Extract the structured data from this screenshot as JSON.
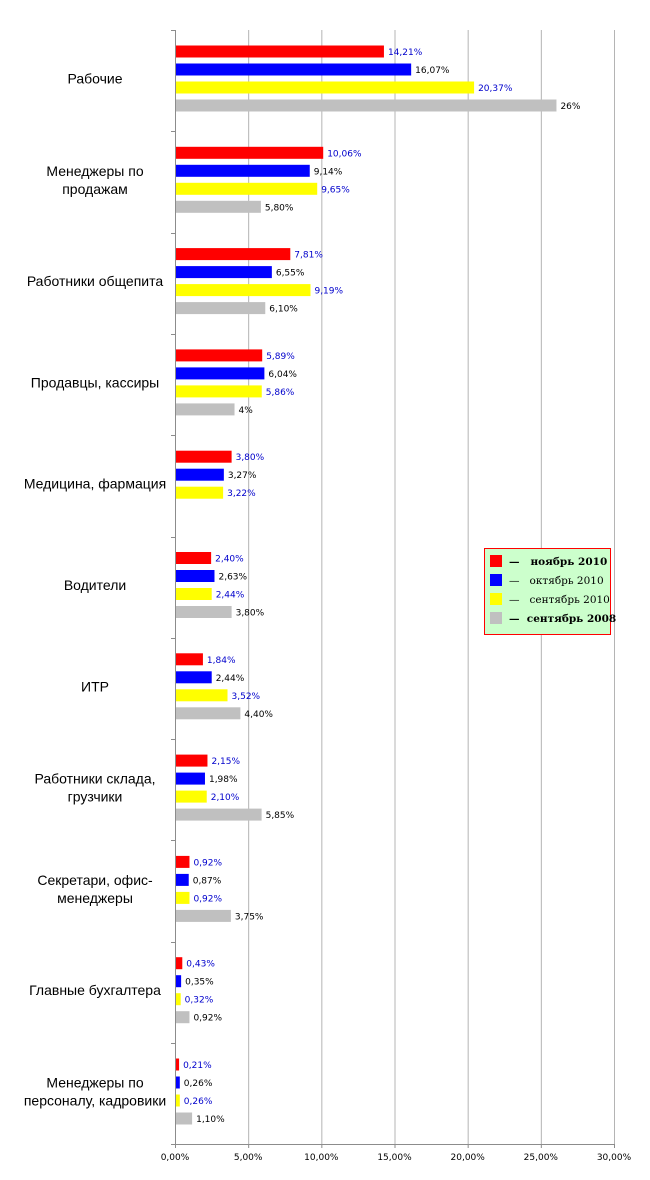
{
  "chart_data": {
    "type": "bar",
    "orientation": "horizontal",
    "categories": [
      "Рабочие",
      "Менеджеры по\nпродажам",
      "Работники общепита",
      "Продавцы, кассиры",
      "Медицина, фармация",
      "Водители",
      "ИТР",
      "Работники склада,\nгрузчики",
      "Секретари, офис-\nменеджеры",
      "Главные бухгалтера",
      "Менеджеры по\nперсоналу, кадровики"
    ],
    "series": [
      {
        "name": "ноябрь 2010",
        "color": "#ff0000",
        "label_color": "#0000cc",
        "values": [
          14.21,
          10.06,
          7.81,
          5.89,
          3.8,
          2.4,
          1.84,
          2.15,
          0.92,
          0.43,
          0.21
        ],
        "labels": [
          "14,21%",
          "10,06%",
          "7,81%",
          "5,89%",
          "3,80%",
          "2,40%",
          "1,84%",
          "2,15%",
          "0,92%",
          "0,43%",
          "0,21%"
        ]
      },
      {
        "name": "октябрь 2010",
        "color": "#0000ff",
        "label_color": "#000000",
        "values": [
          16.07,
          9.14,
          6.55,
          6.04,
          3.27,
          2.63,
          2.44,
          1.98,
          0.87,
          0.35,
          0.26
        ],
        "labels": [
          "16,07%",
          "9,14%",
          "6,55%",
          "6,04%",
          "3,27%",
          "2,63%",
          "2,44%",
          "1,98%",
          "0,87%",
          "0,35%",
          "0,26%"
        ]
      },
      {
        "name": "сентябрь 2010",
        "color": "#ffff00",
        "label_color": "#0000cc",
        "values": [
          20.37,
          9.65,
          9.19,
          5.86,
          3.22,
          2.44,
          3.52,
          2.1,
          0.92,
          0.32,
          0.26
        ],
        "labels": [
          "20,37%",
          "9,65%",
          "9,19%",
          "5,86%",
          "3,22%",
          "2,44%",
          "3,52%",
          "2,10%",
          "0,92%",
          "0,32%",
          "0,26%"
        ]
      },
      {
        "name": "сентябрь 2008",
        "color": "#c0c0c0",
        "label_color": "#000000",
        "values": [
          26,
          5.8,
          6.1,
          4,
          null,
          3.8,
          4.4,
          5.85,
          3.75,
          0.92,
          1.1
        ],
        "labels": [
          "26%",
          "5,80%",
          "6,10%",
          "4%",
          null,
          "3,80%",
          "4,40%",
          "5,85%",
          "3,75%",
          "0,92%",
          "1,10%"
        ]
      }
    ],
    "xlim": [
      0,
      30
    ],
    "xticks": [
      0,
      5,
      10,
      15,
      20,
      25,
      30
    ],
    "xtick_labels": [
      "0,00%",
      "5,00%",
      "10,00%",
      "15,00%",
      "20,00%",
      "25,00%",
      "30,00%"
    ],
    "grid": "vertical",
    "legend": {
      "position": "right",
      "background": "#ccffcc",
      "border": "#ff0000",
      "entries": [
        {
          "text": "—   ноябрь 2010",
          "color": "#ff0000",
          "bold": true
        },
        {
          "text": "—   октябрь 2010",
          "color": "#0000ff",
          "bold": false
        },
        {
          "text": "—   сентябрь 2010",
          "color": "#ffff00",
          "bold": false
        },
        {
          "text": "—  сентябрь 2008",
          "color": "#c0c0c0",
          "bold": true
        }
      ]
    },
    "title": "",
    "xlabel": "",
    "ylabel": ""
  }
}
